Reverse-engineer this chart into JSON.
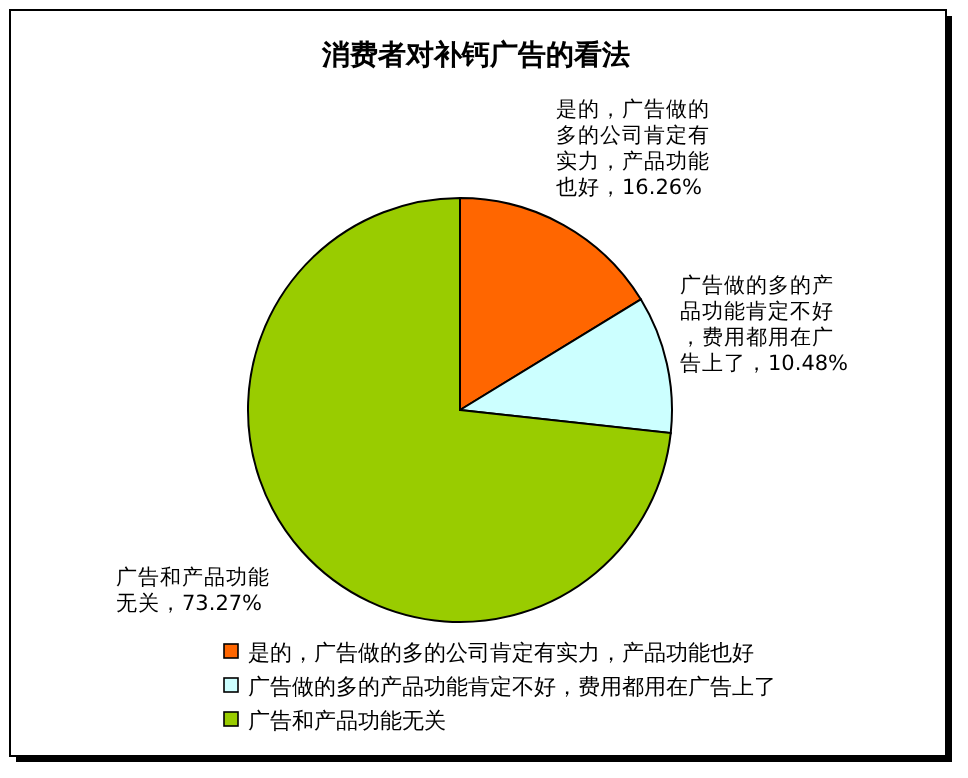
{
  "chart_data": {
    "type": "pie",
    "title": "消费者对补钙广告的看法",
    "categories": [
      "是的，广告做的多的公司肯定有实力，产品功能也好",
      "广告做的多的产品功能肯定不好，费用都用在广告上了",
      "广告和产品功能无关"
    ],
    "values": [
      16.26,
      10.48,
      73.27
    ],
    "colors": [
      "#ff6600",
      "#ccffff",
      "#99cc00"
    ],
    "value_labels": [
      "是的，广告做的多的公司肯定有实力，产品功能也好，16.26%",
      "广告做的多的产品功能肯定不好，费用都用在广告上了，10.48%",
      "广告和产品功能无关，73.27%"
    ],
    "legend": "bottom"
  }
}
